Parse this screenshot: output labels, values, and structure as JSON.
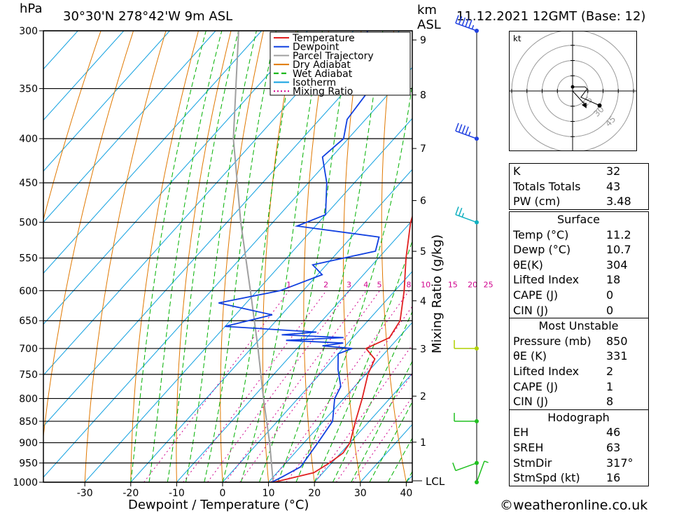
{
  "header": {
    "hpa_unit": "hPa",
    "location": "30°30'N  278°42'W  9m  ASL",
    "km_unit": "km",
    "asl_unit": "ASL",
    "datetime": "11.12.2021  12GMT  (Base: 12)"
  },
  "axes": {
    "pressure_ticks": [
      "300",
      "350",
      "400",
      "450",
      "500",
      "550",
      "600",
      "650",
      "700",
      "750",
      "800",
      "850",
      "900",
      "950",
      "1000"
    ],
    "temp_ticks": [
      "-30",
      "-20",
      "-10",
      "0",
      "10",
      "20",
      "30",
      "40"
    ],
    "km_ticks": [
      "9",
      "8",
      "7",
      "6",
      "5",
      "4",
      "3",
      "2",
      "1"
    ],
    "lcl_label": "LCL",
    "xlabel": "Dewpoint / Temperature (°C)",
    "mixing_axis_label": "Mixing Ratio (g/kg)",
    "mixing_ratio_labels": [
      "1",
      "2",
      "3",
      "4",
      "5",
      "8",
      "10",
      "15",
      "20",
      "25"
    ]
  },
  "legend": {
    "items": [
      "Temperature",
      "Dewpoint",
      "Parcel Trajectory",
      "Dry Adiabat",
      "Wet Adiabat",
      "Isotherm",
      "Mixing Ratio"
    ],
    "colors": [
      "#e02020",
      "#1040e0",
      "#a0a0a0",
      "#e07800",
      "#00b000",
      "#10a0e0",
      "#d0008c"
    ]
  },
  "chart_data": {
    "type": "skew-t log-p sounding",
    "pressure_range_hpa": [
      300,
      1000
    ],
    "temperature_range_c": [
      -40,
      40
    ],
    "temperature_profile": [
      {
        "p": 1000,
        "t": 11.2
      },
      {
        "p": 975,
        "t": 18
      },
      {
        "p": 950,
        "t": 19.5
      },
      {
        "p": 925,
        "t": 20.5
      },
      {
        "p": 900,
        "t": 20
      },
      {
        "p": 850,
        "t": 17
      },
      {
        "p": 800,
        "t": 14
      },
      {
        "p": 750,
        "t": 10.5
      },
      {
        "p": 720,
        "t": 9
      },
      {
        "p": 700,
        "t": 5
      },
      {
        "p": 680,
        "t": 8
      },
      {
        "p": 650,
        "t": 7
      },
      {
        "p": 600,
        "t": 2
      },
      {
        "p": 550,
        "t": -4
      },
      {
        "p": 500,
        "t": -10
      },
      {
        "p": 480,
        "t": -12
      },
      {
        "p": 450,
        "t": -17
      },
      {
        "p": 420,
        "t": -22
      },
      {
        "p": 400,
        "t": -25
      },
      {
        "p": 350,
        "t": -35
      },
      {
        "p": 300,
        "t": -45
      }
    ],
    "dewpoint_profile": [
      {
        "p": 1000,
        "t": 10.7
      },
      {
        "p": 985,
        "t": 12
      },
      {
        "p": 960,
        "t": 14
      },
      {
        "p": 930,
        "t": 13.5
      },
      {
        "p": 900,
        "t": 13
      },
      {
        "p": 850,
        "t": 12
      },
      {
        "p": 800,
        "t": 8
      },
      {
        "p": 775,
        "t": 7
      },
      {
        "p": 740,
        "t": 3
      },
      {
        "p": 710,
        "t": 0
      },
      {
        "p": 700,
        "t": 2
      },
      {
        "p": 695,
        "t": -5
      },
      {
        "p": 690,
        "t": -1
      },
      {
        "p": 685,
        "t": -14
      },
      {
        "p": 680,
        "t": -2
      },
      {
        "p": 675,
        "t": -16
      },
      {
        "p": 670,
        "t": -9
      },
      {
        "p": 660,
        "t": -30
      },
      {
        "p": 640,
        "t": -22
      },
      {
        "p": 620,
        "t": -36
      },
      {
        "p": 600,
        "t": -25
      },
      {
        "p": 575,
        "t": -19
      },
      {
        "p": 560,
        "t": -23
      },
      {
        "p": 540,
        "t": -12
      },
      {
        "p": 520,
        "t": -14
      },
      {
        "p": 505,
        "t": -34
      },
      {
        "p": 490,
        "t": -30
      },
      {
        "p": 450,
        "t": -36
      },
      {
        "p": 420,
        "t": -42
      },
      {
        "p": 400,
        "t": -41
      },
      {
        "p": 380,
        "t": -44
      },
      {
        "p": 350,
        "t": -45
      },
      {
        "p": 330,
        "t": -48
      },
      {
        "p": 315,
        "t": -53
      },
      {
        "p": 300,
        "t": -57
      }
    ],
    "parcel_trajectory": [
      {
        "p": 1000,
        "t": 11
      },
      {
        "p": 900,
        "t": 2.5
      },
      {
        "p": 800,
        "t": -7.5
      },
      {
        "p": 700,
        "t": -18.5
      },
      {
        "p": 600,
        "t": -31.5
      },
      {
        "p": 500,
        "t": -47
      },
      {
        "p": 400,
        "t": -65
      },
      {
        "p": 300,
        "t": -85
      }
    ],
    "wind_barbs": [
      {
        "p": 1000,
        "dir": 20,
        "spd": 5
      },
      {
        "p": 950,
        "dir": 250,
        "spd": 10
      },
      {
        "p": 850,
        "dir": 270,
        "spd": 10
      },
      {
        "p": 700,
        "dir": 270,
        "spd": 10
      },
      {
        "p": 500,
        "dir": 290,
        "spd": 25
      },
      {
        "p": 400,
        "dir": 290,
        "spd": 45
      },
      {
        "p": 300,
        "dir": 290,
        "spd": 55
      }
    ]
  },
  "hodograph": {
    "unit": "kt",
    "ring_labels": [
      "15",
      "30",
      "45"
    ],
    "points": [
      [
        0,
        10
      ],
      [
        30,
        10
      ],
      [
        35,
        5
      ],
      [
        20,
        -15
      ],
      [
        65,
        -35
      ]
    ]
  },
  "indices": {
    "k_label": "K",
    "k": "32",
    "tt_label": "Totals Totals",
    "tt": "43",
    "pw_label": "PW (cm)",
    "pw": "3.48"
  },
  "surface": {
    "title": "Surface",
    "temp_label": "Temp (°C)",
    "temp": "11.2",
    "dewp_label": "Dewp (°C)",
    "dewp": "10.7",
    "theta_label": "θE(K)",
    "theta": "304",
    "li_label": "Lifted Index",
    "li": "18",
    "cape_label": "CAPE (J)",
    "cape": "0",
    "cin_label": "CIN (J)",
    "cin": "0"
  },
  "most_unstable": {
    "title": "Most Unstable",
    "pressure_label": "Pressure (mb)",
    "pressure": "850",
    "theta_label": "θE (K)",
    "theta": "331",
    "li_label": "Lifted Index",
    "li": "2",
    "cape_label": "CAPE (J)",
    "cape": "1",
    "cin_label": "CIN (J)",
    "cin": "8"
  },
  "hodograph_table": {
    "title": "Hodograph",
    "eh_label": "EH",
    "eh": "46",
    "sreh_label": "SREH",
    "sreh": "63",
    "stmdir_label": "StmDir",
    "stmdir": "317°",
    "stmspd_label": "StmSpd (kt)",
    "stmspd": "16"
  },
  "footer": {
    "copyright": "©weatheronline.co.uk"
  }
}
